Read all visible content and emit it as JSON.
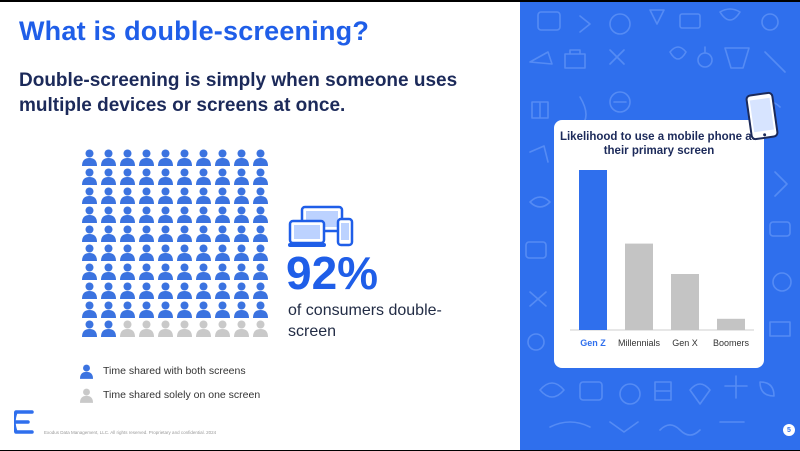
{
  "slide": {
    "title": "What is double-screening?",
    "subtitle": "Double-screening is simply when someone uses multiple devices or screens at once.",
    "stat": {
      "value": "92%",
      "caption": "of consumers double-screen"
    },
    "pictogram": {
      "total": 100,
      "filled": 92,
      "filled_color": "#3b73e0",
      "empty_color": "#c9c9c9"
    },
    "legend": [
      {
        "label": "Time shared with both screens",
        "color": "#3b73e0"
      },
      {
        "label": "Time shared solely on one screen",
        "color": "#c9c9c9"
      }
    ],
    "footer": "Exodus Data Management, LLC. All rights reserved. Proprietary and confidential. 2024",
    "page_number": "5"
  },
  "chart_data": {
    "type": "bar",
    "title": "Likelihood to use a mobile phone as their primary screen",
    "categories": [
      "Gen Z",
      "Millennials",
      "Gen X",
      "Boomers"
    ],
    "values": [
      100,
      54,
      35,
      7
    ],
    "highlight_index": 0,
    "colors": {
      "highlight": "#2f6fed",
      "default": "#c4c4c4"
    },
    "ylim": [
      0,
      100
    ],
    "grid": false,
    "legend": "none"
  }
}
